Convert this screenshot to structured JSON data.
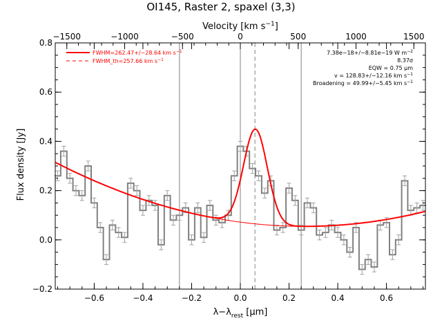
{
  "chart_data": {
    "type": "line",
    "title": "OI145, Raster 2, spaxel (3,3)",
    "xlabel": "λ−λrest [μm]",
    "xlabel_parts": {
      "base": "λ−λ",
      "sub": "rest",
      "unit": " [μm]"
    },
    "ylabel": "Flux density [Jy]",
    "top_axis_label": "Velocity [km s⁻¹]",
    "top_axis_label_parts": {
      "base": "Velocity [km s",
      "sup": "−1",
      "end": "]"
    },
    "xlim": [
      -0.76,
      0.76
    ],
    "ylim": [
      -0.2,
      0.8
    ],
    "top_xlim": [
      -1600,
      1600
    ],
    "x_ticks": [
      -0.6,
      -0.4,
      -0.2,
      0.0,
      0.2,
      0.4,
      0.6
    ],
    "x_tick_labels": [
      "−0.6",
      "−0.4",
      "−0.2",
      "0.0",
      "0.2",
      "0.4",
      "0.6"
    ],
    "y_ticks": [
      -0.2,
      0.0,
      0.2,
      0.4,
      0.6,
      0.8
    ],
    "y_tick_labels": [
      "−0.2",
      "0.0",
      "0.2",
      "0.4",
      "0.6",
      "0.8"
    ],
    "top_ticks": [
      -1500,
      -1000,
      -500,
      0,
      500,
      1000,
      1500
    ],
    "top_tick_labels": [
      "−1500",
      "−1000",
      "−500",
      "0",
      "500",
      "1000",
      "1500"
    ],
    "vertical_lines": [
      -0.25,
      0.0,
      0.25
    ],
    "dashed_line": 0.06,
    "legend": {
      "position": "top-left",
      "entries": [
        {
          "label": "FWHM=262.47+/−28.64 km s",
          "sup": "−1",
          "style": "solid",
          "color": "#ff0000"
        },
        {
          "label": "FWHM_th=257.66 km s",
          "sup": "−1",
          "style": "dashed",
          "color": "#ff0000"
        }
      ]
    },
    "annotations": [
      {
        "text": "7.38e−18+/−8.81e−19 W m",
        "sup": "−2"
      },
      {
        "text": "8.37σ",
        "sup": ""
      },
      {
        "text": "EQW = 0.75 μm",
        "sup": ""
      },
      {
        "text": "v = 128.83+/−12.16 km s",
        "sup": "−1"
      },
      {
        "text": "Broadening = 49.99+/−5.45 km s",
        "sup": "−1"
      }
    ],
    "series": [
      {
        "name": "spectrum",
        "style": "step",
        "color": "#808080",
        "x": [
          -0.75,
          -0.725,
          -0.7,
          -0.675,
          -0.65,
          -0.625,
          -0.6,
          -0.575,
          -0.55,
          -0.525,
          -0.5,
          -0.475,
          -0.45,
          -0.425,
          -0.4,
          -0.375,
          -0.35,
          -0.325,
          -0.3,
          -0.275,
          -0.25,
          -0.225,
          -0.2,
          -0.175,
          -0.15,
          -0.125,
          -0.1,
          -0.075,
          -0.05,
          -0.025,
          0.0,
          0.025,
          0.05,
          0.075,
          0.1,
          0.125,
          0.15,
          0.175,
          0.2,
          0.225,
          0.25,
          0.275,
          0.3,
          0.325,
          0.35,
          0.375,
          0.4,
          0.425,
          0.45,
          0.475,
          0.5,
          0.525,
          0.55,
          0.575,
          0.6,
          0.625,
          0.65,
          0.675,
          0.7,
          0.725,
          0.75
        ],
        "y": [
          0.26,
          0.36,
          0.25,
          0.2,
          0.18,
          0.3,
          0.15,
          0.05,
          -0.08,
          0.06,
          0.03,
          0.01,
          0.23,
          0.2,
          0.12,
          0.16,
          0.14,
          -0.02,
          0.18,
          0.08,
          0.1,
          0.13,
          0.0,
          0.13,
          0.01,
          0.14,
          0.08,
          0.07,
          0.1,
          0.26,
          0.38,
          0.36,
          0.29,
          0.26,
          0.19,
          0.24,
          0.04,
          0.05,
          0.21,
          0.16,
          0.04,
          0.15,
          0.13,
          0.02,
          0.03,
          0.06,
          0.03,
          0.0,
          -0.05,
          0.05,
          -0.12,
          -0.08,
          -0.11,
          0.06,
          0.07,
          -0.06,
          0.0,
          0.24,
          0.12,
          0.13,
          0.14
        ],
        "yerr": 0.02
      },
      {
        "name": "fit",
        "style": "solid",
        "color": "#ff0000",
        "peak": {
          "center": 0.062,
          "amplitude": 0.385,
          "fwhm": 0.115
        },
        "continuum": {
          "a": 0.0548,
          "b": 0.0246,
          "c": 0.264
        }
      }
    ],
    "grid": false,
    "colors": {
      "spectrum": "#808080",
      "fit": "#ff0000",
      "axes": "#000000",
      "reference_lines": "#808080"
    }
  }
}
